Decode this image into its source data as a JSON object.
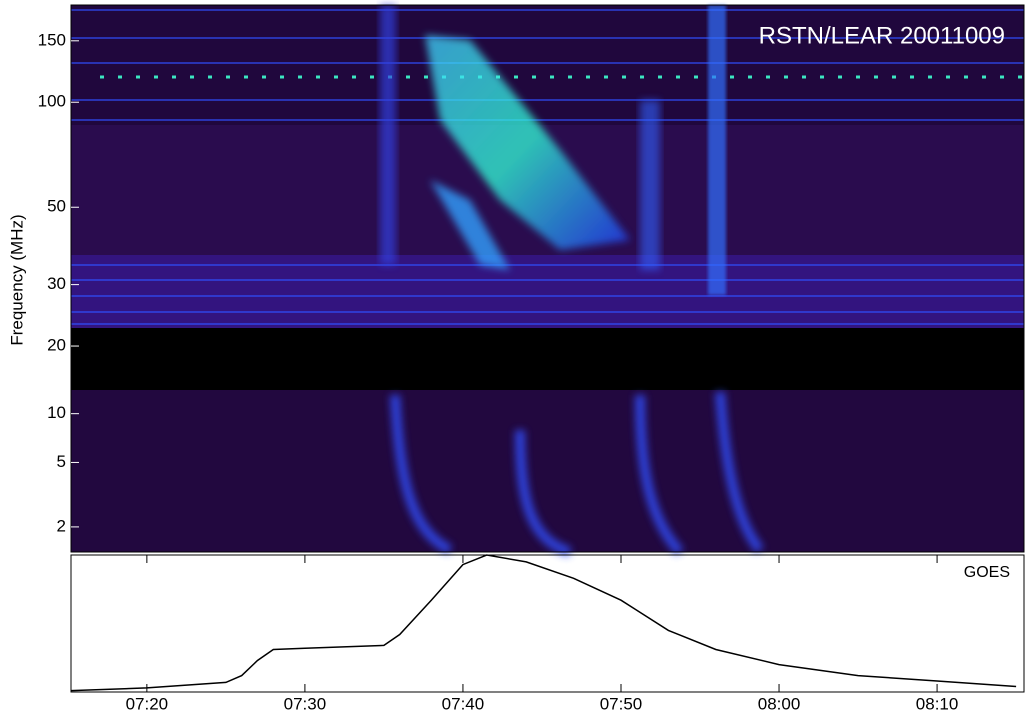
{
  "chart_data": [
    {
      "type": "spectrogram",
      "title": "RSTN/LEAR 20011009",
      "ylabel": "Frequency (MHz)",
      "log": true,
      "ylim": [
        18,
        190
      ],
      "yticks": [
        20,
        30,
        50,
        100,
        150
      ]
    },
    {
      "type": "spectrogram",
      "log": true,
      "ylim": [
        1.4,
        14
      ],
      "yticks": [
        2,
        5,
        10
      ]
    },
    {
      "type": "line",
      "label": "GOES",
      "color": "#000000",
      "x": [
        435.2,
        440,
        445,
        446,
        447,
        448,
        450,
        455,
        456,
        458,
        460,
        461.5,
        464,
        467,
        470,
        473,
        476,
        480,
        485,
        490,
        495
      ],
      "values": [
        0.01,
        0.03,
        0.07,
        0.12,
        0.23,
        0.31,
        0.32,
        0.34,
        0.42,
        0.67,
        0.93,
        1.0,
        0.95,
        0.83,
        0.67,
        0.45,
        0.31,
        0.2,
        0.12,
        0.08,
        0.04
      ],
      "ylim": [
        0,
        1
      ],
      "xlim": [
        435.2,
        495.5
      ],
      "xticks": [
        {
          "value": 440,
          "label": "07:20"
        },
        {
          "value": 450,
          "label": "07:30"
        },
        {
          "value": 460,
          "label": "07:40"
        },
        {
          "value": 470,
          "label": "07:50"
        },
        {
          "value": 480,
          "label": "08:00"
        },
        {
          "value": 490,
          "label": "08:10"
        }
      ]
    }
  ]
}
